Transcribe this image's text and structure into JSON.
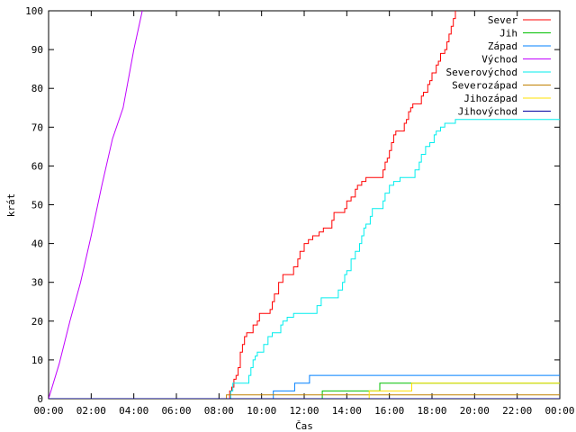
{
  "chart_data": {
    "type": "line",
    "title": "",
    "xlabel": "Čas",
    "ylabel": "krát",
    "xlim": [
      0,
      24
    ],
    "ylim": [
      0,
      100
    ],
    "x_ticks": [
      "00:00",
      "02:00",
      "04:00",
      "06:00",
      "08:00",
      "10:00",
      "12:00",
      "14:00",
      "16:00",
      "18:00",
      "20:00",
      "22:00",
      "00:00"
    ],
    "y_ticks": [
      "0",
      "10",
      "20",
      "30",
      "40",
      "50",
      "60",
      "70",
      "80",
      "90",
      "100"
    ],
    "legend_position": "top-right",
    "grid": false,
    "series": [
      {
        "name": "Sever",
        "color": "#ff0000",
        "step": true,
        "points": [
          [
            0,
            0
          ],
          [
            8.4,
            0
          ],
          [
            8.5,
            2
          ],
          [
            8.6,
            3
          ],
          [
            8.7,
            5
          ],
          [
            8.8,
            6
          ],
          [
            8.9,
            8
          ],
          [
            9.0,
            12
          ],
          [
            9.1,
            14
          ],
          [
            9.2,
            16
          ],
          [
            9.3,
            17
          ],
          [
            9.5,
            17
          ],
          [
            9.6,
            19
          ],
          [
            9.8,
            20
          ],
          [
            9.9,
            22
          ],
          [
            10.3,
            22
          ],
          [
            10.4,
            23
          ],
          [
            10.5,
            25
          ],
          [
            10.6,
            27
          ],
          [
            10.8,
            30
          ],
          [
            11.0,
            32
          ],
          [
            11.4,
            32
          ],
          [
            11.5,
            34
          ],
          [
            11.7,
            36
          ],
          [
            11.8,
            38
          ],
          [
            12.0,
            40
          ],
          [
            12.2,
            41
          ],
          [
            12.4,
            42
          ],
          [
            12.7,
            43
          ],
          [
            12.9,
            44
          ],
          [
            13.3,
            46
          ],
          [
            13.4,
            48
          ],
          [
            13.9,
            49
          ],
          [
            14.0,
            51
          ],
          [
            14.2,
            52
          ],
          [
            14.4,
            54
          ],
          [
            14.5,
            55
          ],
          [
            14.7,
            56
          ],
          [
            14.9,
            57
          ],
          [
            15.6,
            57
          ],
          [
            15.7,
            59
          ],
          [
            15.8,
            61
          ],
          [
            15.9,
            62
          ],
          [
            16.0,
            64
          ],
          [
            16.1,
            66
          ],
          [
            16.2,
            68
          ],
          [
            16.3,
            69
          ],
          [
            16.6,
            69
          ],
          [
            16.7,
            71
          ],
          [
            16.8,
            72
          ],
          [
            16.9,
            74
          ],
          [
            17.0,
            75
          ],
          [
            17.1,
            76
          ],
          [
            17.4,
            76
          ],
          [
            17.5,
            78
          ],
          [
            17.6,
            79
          ],
          [
            17.8,
            81
          ],
          [
            17.9,
            82
          ],
          [
            18.0,
            84
          ],
          [
            18.2,
            86
          ],
          [
            18.3,
            87
          ],
          [
            18.4,
            89
          ],
          [
            18.6,
            90
          ],
          [
            18.7,
            92
          ],
          [
            18.8,
            94
          ],
          [
            18.9,
            96
          ],
          [
            19.0,
            98
          ],
          [
            19.1,
            100
          ]
        ]
      },
      {
        "name": "Jih",
        "color": "#00c000",
        "step": true,
        "points": [
          [
            0,
            0
          ],
          [
            12.8,
            0
          ],
          [
            12.85,
            2
          ],
          [
            15.5,
            2
          ],
          [
            15.55,
            4
          ],
          [
            24,
            4
          ]
        ]
      },
      {
        "name": "Západ",
        "color": "#0080ff",
        "step": true,
        "points": [
          [
            0,
            0
          ],
          [
            10.5,
            0
          ],
          [
            10.55,
            2
          ],
          [
            11.5,
            2
          ],
          [
            11.55,
            4
          ],
          [
            12.2,
            4
          ],
          [
            12.25,
            6
          ],
          [
            24,
            6
          ]
        ]
      },
      {
        "name": "Východ",
        "color": "#c000ff",
        "step": false,
        "points": [
          [
            0,
            0
          ],
          [
            0.5,
            9
          ],
          [
            1.0,
            20
          ],
          [
            1.5,
            30
          ],
          [
            2.0,
            42
          ],
          [
            2.5,
            55
          ],
          [
            3.0,
            67
          ],
          [
            3.5,
            75
          ],
          [
            4.0,
            90
          ],
          [
            4.4,
            100
          ]
        ]
      },
      {
        "name": "Severovýchod",
        "color": "#00eeee",
        "step": true,
        "points": [
          [
            0,
            0
          ],
          [
            8.5,
            0
          ],
          [
            8.55,
            2
          ],
          [
            8.65,
            4
          ],
          [
            9.3,
            4
          ],
          [
            9.4,
            6
          ],
          [
            9.5,
            8
          ],
          [
            9.6,
            10
          ],
          [
            9.7,
            11
          ],
          [
            9.8,
            12
          ],
          [
            10.1,
            14
          ],
          [
            10.3,
            16
          ],
          [
            10.5,
            17
          ],
          [
            10.8,
            17
          ],
          [
            10.9,
            19
          ],
          [
            11.0,
            20
          ],
          [
            11.2,
            21
          ],
          [
            11.5,
            22
          ],
          [
            12.5,
            22
          ],
          [
            12.6,
            24
          ],
          [
            12.8,
            26
          ],
          [
            13.5,
            26
          ],
          [
            13.6,
            28
          ],
          [
            13.8,
            30
          ],
          [
            13.9,
            32
          ],
          [
            14.0,
            33
          ],
          [
            14.2,
            36
          ],
          [
            14.4,
            38
          ],
          [
            14.6,
            40
          ],
          [
            14.7,
            42
          ],
          [
            14.8,
            44
          ],
          [
            14.9,
            45
          ],
          [
            15.1,
            47
          ],
          [
            15.2,
            49
          ],
          [
            15.6,
            49
          ],
          [
            15.7,
            51
          ],
          [
            15.8,
            53
          ],
          [
            16.0,
            55
          ],
          [
            16.2,
            56
          ],
          [
            16.5,
            57
          ],
          [
            17.1,
            57
          ],
          [
            17.2,
            59
          ],
          [
            17.4,
            61
          ],
          [
            17.5,
            63
          ],
          [
            17.7,
            65
          ],
          [
            17.9,
            66
          ],
          [
            18.1,
            68
          ],
          [
            18.2,
            69
          ],
          [
            18.4,
            70
          ],
          [
            18.6,
            71
          ],
          [
            19.0,
            71
          ],
          [
            19.1,
            72
          ],
          [
            24,
            72
          ]
        ]
      },
      {
        "name": "Severozápad",
        "color": "#c08000",
        "step": true,
        "points": [
          [
            0,
            0
          ],
          [
            8.3,
            0
          ],
          [
            8.35,
            1
          ],
          [
            24,
            1
          ]
        ]
      },
      {
        "name": "Jihozápad",
        "color": "#ffe000",
        "step": true,
        "points": [
          [
            0,
            0
          ],
          [
            15.0,
            0
          ],
          [
            15.05,
            2
          ],
          [
            17.0,
            2
          ],
          [
            17.05,
            4
          ],
          [
            24,
            4
          ]
        ]
      },
      {
        "name": "Jihovýchod",
        "color": "#0000a0",
        "step": true,
        "points": [
          [
            0,
            0
          ],
          [
            24,
            0
          ]
        ]
      }
    ]
  }
}
